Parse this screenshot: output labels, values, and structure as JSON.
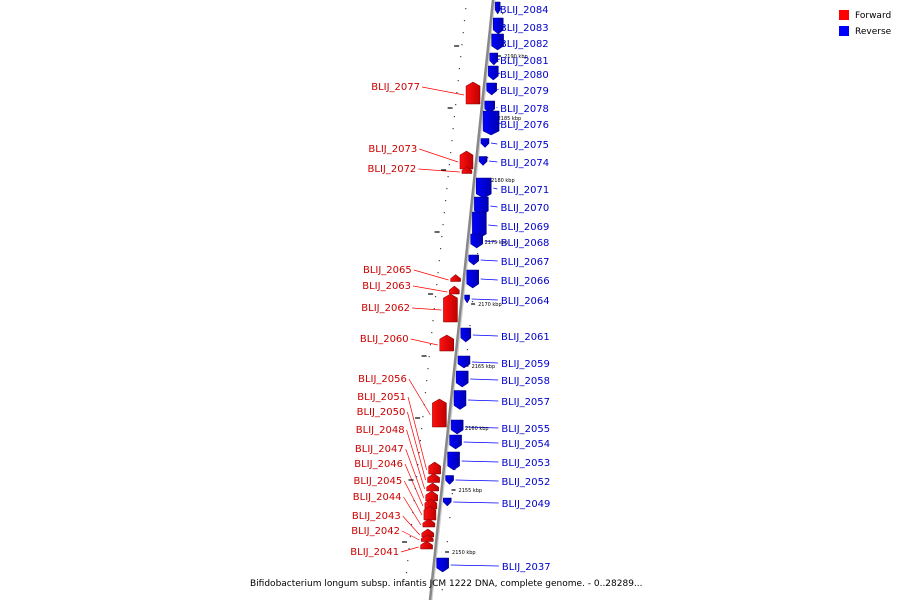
{
  "caption": "Bifidobacterium longum subsp. infantis JCM 1222 DNA, complete genome. - 0..28289...",
  "legend": [
    {
      "label": "Forward",
      "color": "#ff0000"
    },
    {
      "label": "Reverse",
      "color": "#0000ff"
    }
  ],
  "colors": {
    "forward": "#ee0000",
    "reverse": "#0000ee",
    "backbone": "#888888"
  },
  "ticks": [
    "2190 kbp",
    "2185 kbp",
    "2180 kbp",
    "2175 kbp",
    "2170 kbp",
    "2165 kbp",
    "2160 kbp",
    "2155 kbp",
    "2150 kbp"
  ],
  "reverse_genes": [
    "BLIJ_2084",
    "BLIJ_2083",
    "BLIJ_2082",
    "BLIJ_2081",
    "BLIJ_2080",
    "BLIJ_2079",
    "BLIJ_2078",
    "BLIJ_2076",
    "BLIJ_2075",
    "BLIJ_2074",
    "BLIJ_2071",
    "BLIJ_2070",
    "BLIJ_2069",
    "BLIJ_2068",
    "BLIJ_2067",
    "BLIJ_2066",
    "BLIJ_2064",
    "BLIJ_2061",
    "BLIJ_2059",
    "BLIJ_2058",
    "BLIJ_2057",
    "BLIJ_2055",
    "BLIJ_2054",
    "BLIJ_2053",
    "BLIJ_2052",
    "BLIJ_2049",
    "BLIJ_2037"
  ],
  "forward_genes": [
    "BLIJ_2077",
    "BLIJ_2073",
    "BLIJ_2072",
    "BLIJ_2065",
    "BLIJ_2063",
    "BLIJ_2062",
    "BLIJ_2060",
    "BLIJ_2056",
    "BLIJ_2051",
    "BLIJ_2050",
    "BLIJ_2048",
    "BLIJ_2047",
    "BLIJ_2046",
    "BLIJ_2045",
    "BLIJ_2044",
    "BLIJ_2043",
    "BLIJ_2042",
    "BLIJ_2041"
  ]
}
